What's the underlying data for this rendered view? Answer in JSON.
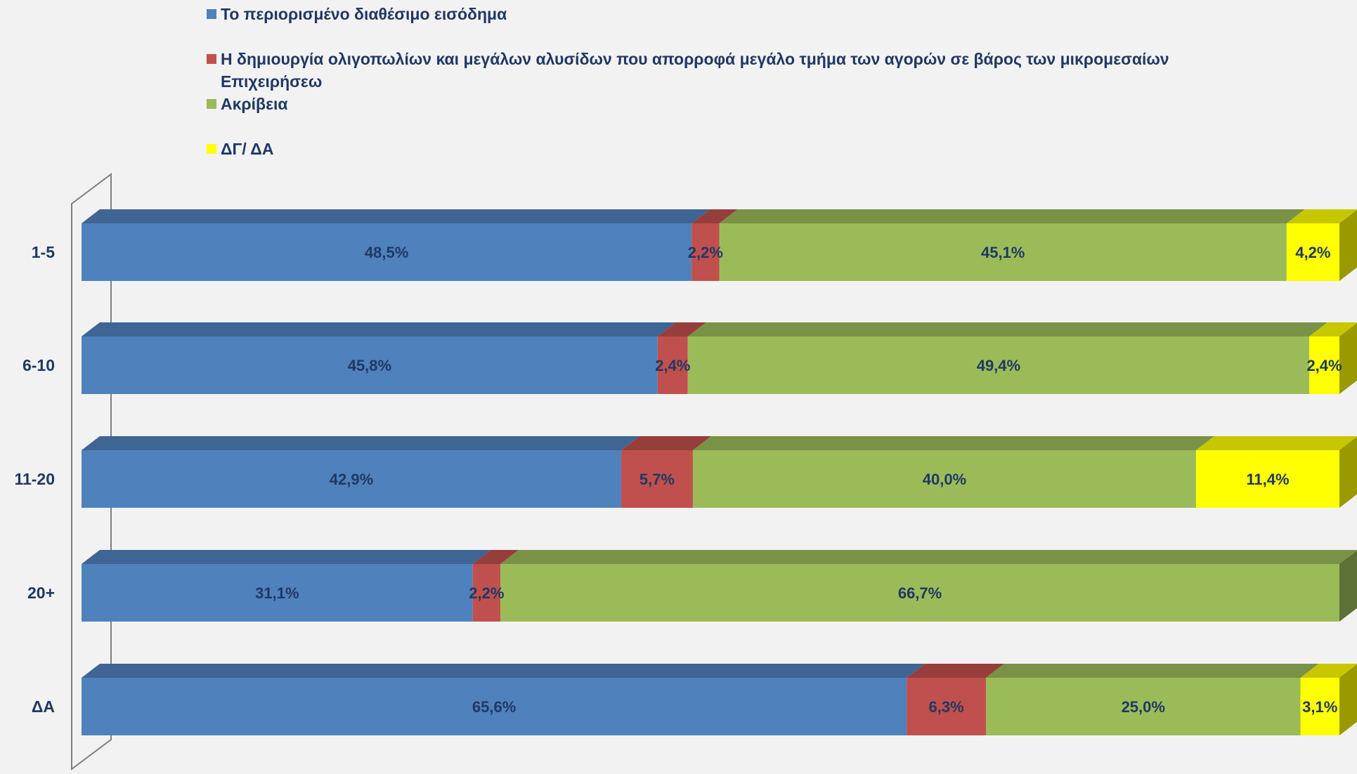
{
  "chart_data": {
    "type": "bar",
    "orientation": "horizontal",
    "stacked": true,
    "percent_stacked": true,
    "three_d": true,
    "categories": [
      "1-5",
      "6-10",
      "11-20",
      "20+",
      "ΔΑ"
    ],
    "series": [
      {
        "name": "Το περιορισμένο διαθέσιμο εισόδημα",
        "color": "#4f81bd",
        "values": [
          48.5,
          45.8,
          42.9,
          31.1,
          65.6
        ],
        "labels": [
          "48,5%",
          "45,8%",
          "42,9%",
          "31,1%",
          "65,6%"
        ]
      },
      {
        "name": "Η δημιουργία ολιγοπωλίων και μεγάλων αλυσίδων που απορροφά μεγάλο τμήμα των αγορών σε βάρος των μικρομεσαίων",
        "name_line2": "Επιχειρήσεω",
        "color": "#c0504d",
        "values": [
          2.2,
          2.4,
          5.7,
          2.2,
          6.3
        ],
        "labels": [
          "2,2%",
          "2,4%",
          "5,7%",
          "2,2%",
          "6,3%"
        ]
      },
      {
        "name": "Ακρίβεια",
        "color": "#9bbb59",
        "values": [
          45.1,
          49.4,
          40.0,
          66.7,
          25.0
        ],
        "labels": [
          "45,1%",
          "49,4%",
          "40,0%",
          "66,7%",
          "25,0%"
        ]
      },
      {
        "name": "ΔΓ/ ΔΑ",
        "color": "#ffff00",
        "values": [
          4.2,
          2.4,
          11.4,
          null,
          3.1
        ],
        "labels": [
          "4,2%",
          "2,4%",
          "11,4%",
          "",
          "3,1%"
        ]
      }
    ],
    "legend_position": "top",
    "grid": false,
    "xlim": [
      0,
      100
    ]
  }
}
